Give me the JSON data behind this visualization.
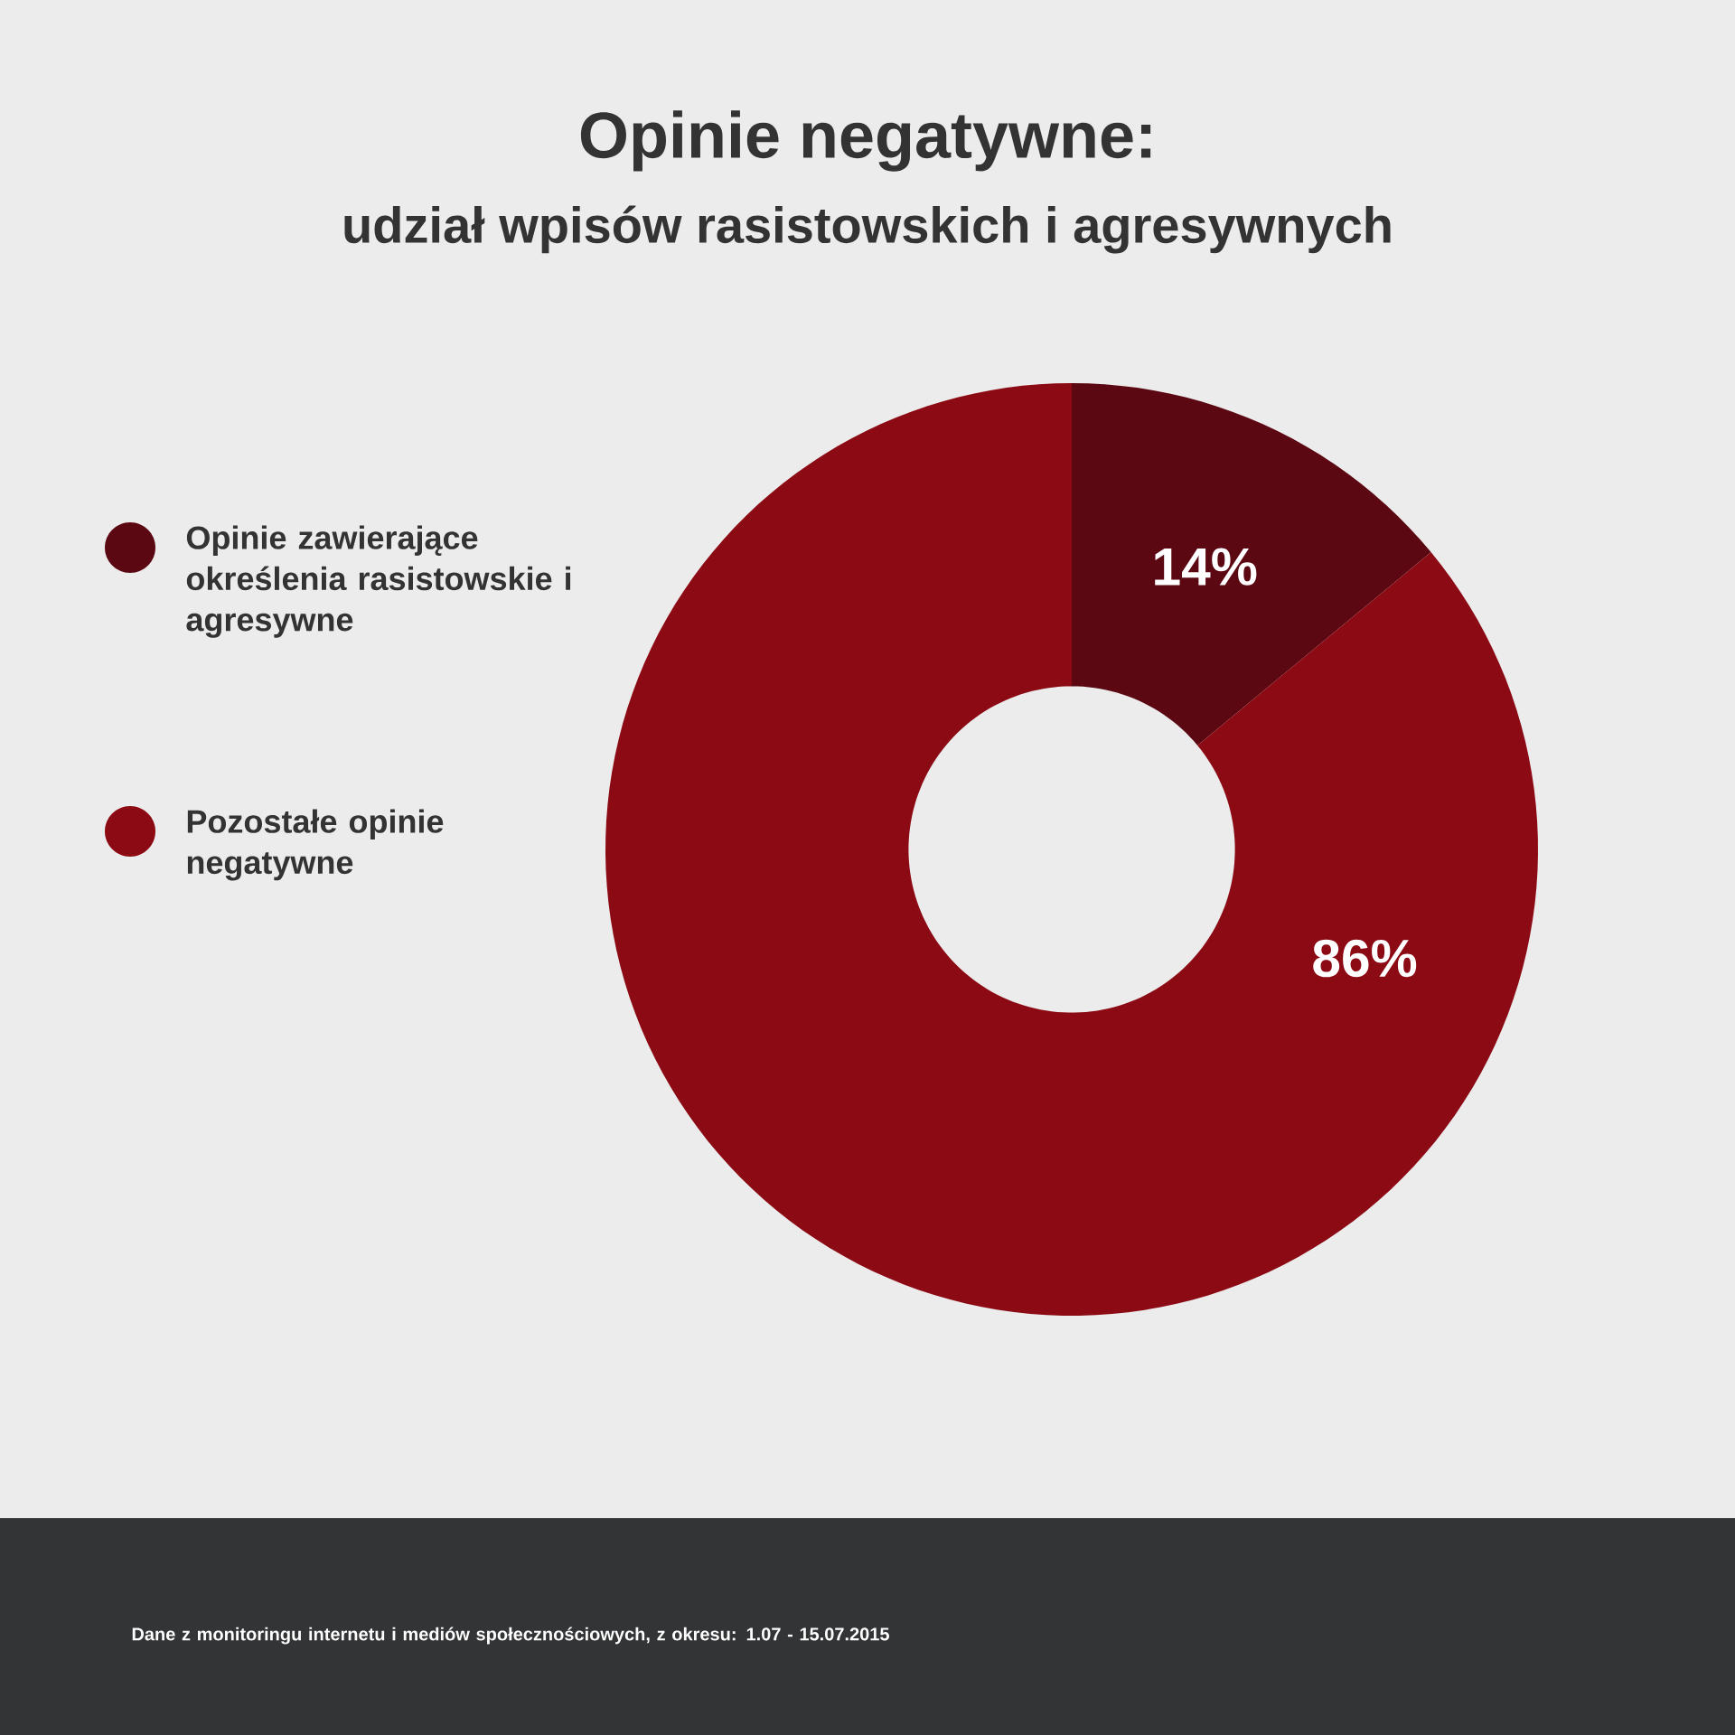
{
  "chart_data": {
    "type": "donut",
    "title": "Opinie negatywne:",
    "subtitle": "udział wpisów rasistowskich i agresywnych",
    "categories": [
      "Opinie zawierające określenia rasistowskie i agresywne",
      "Pozostałe opinie negatywne"
    ],
    "values": [
      14,
      86
    ],
    "value_labels": [
      "14%",
      "86%"
    ],
    "colors": [
      "#5c0812",
      "#8c0a14"
    ],
    "legend": "left",
    "annotations": [
      "Dane z monitoringu internetu i mediów społecznościowych, z okresu: 1.07 - 15.07.2015"
    ]
  }
}
